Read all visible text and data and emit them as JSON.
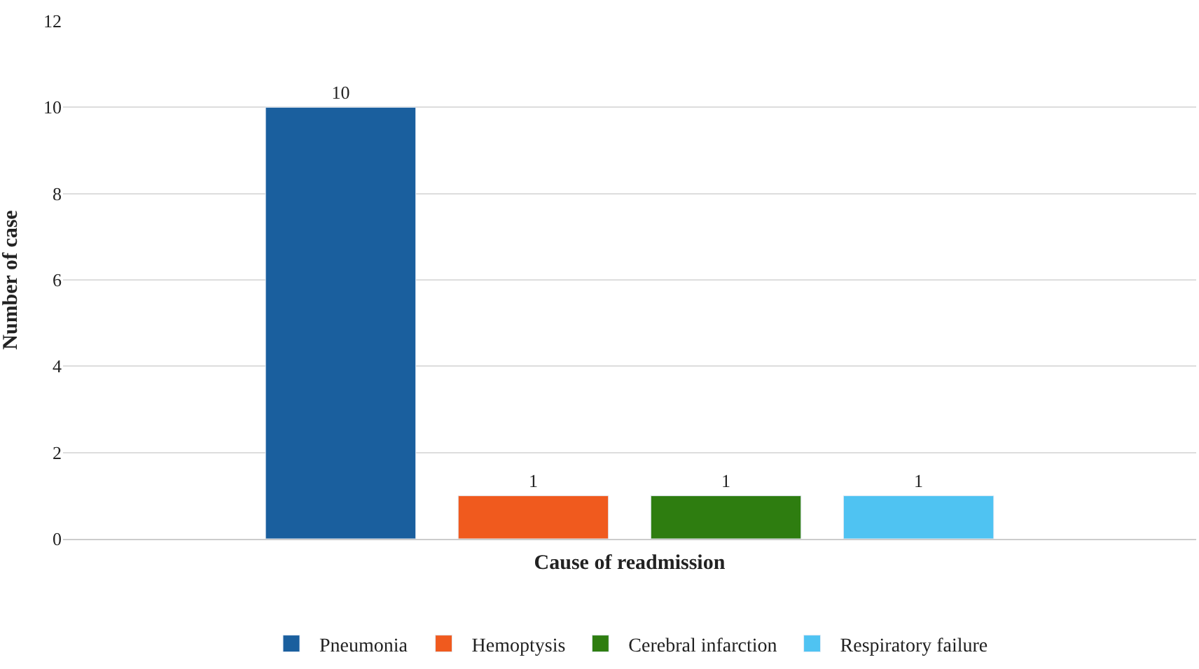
{
  "chart_data": {
    "type": "bar",
    "xlabel": "Cause of readmission",
    "ylabel": "Number of case",
    "categories": [
      null
    ],
    "series": [
      {
        "name": "Pneumonia",
        "color": "#1a5f9e",
        "values": [
          10
        ]
      },
      {
        "name": "Hemoptysis",
        "color": "#f05a1e",
        "values": [
          1
        ]
      },
      {
        "name": "Cerebral infarction",
        "color": "#2e7d10",
        "values": [
          1
        ]
      },
      {
        "name": "Respiratory failure",
        "color": "#4fc3f2",
        "values": [
          1
        ]
      }
    ],
    "ylim": [
      0,
      12
    ],
    "yticks": [
      0,
      2,
      4,
      6,
      8,
      10,
      12
    ],
    "grid": "y",
    "data_labels": true,
    "legend": "bottom"
  }
}
